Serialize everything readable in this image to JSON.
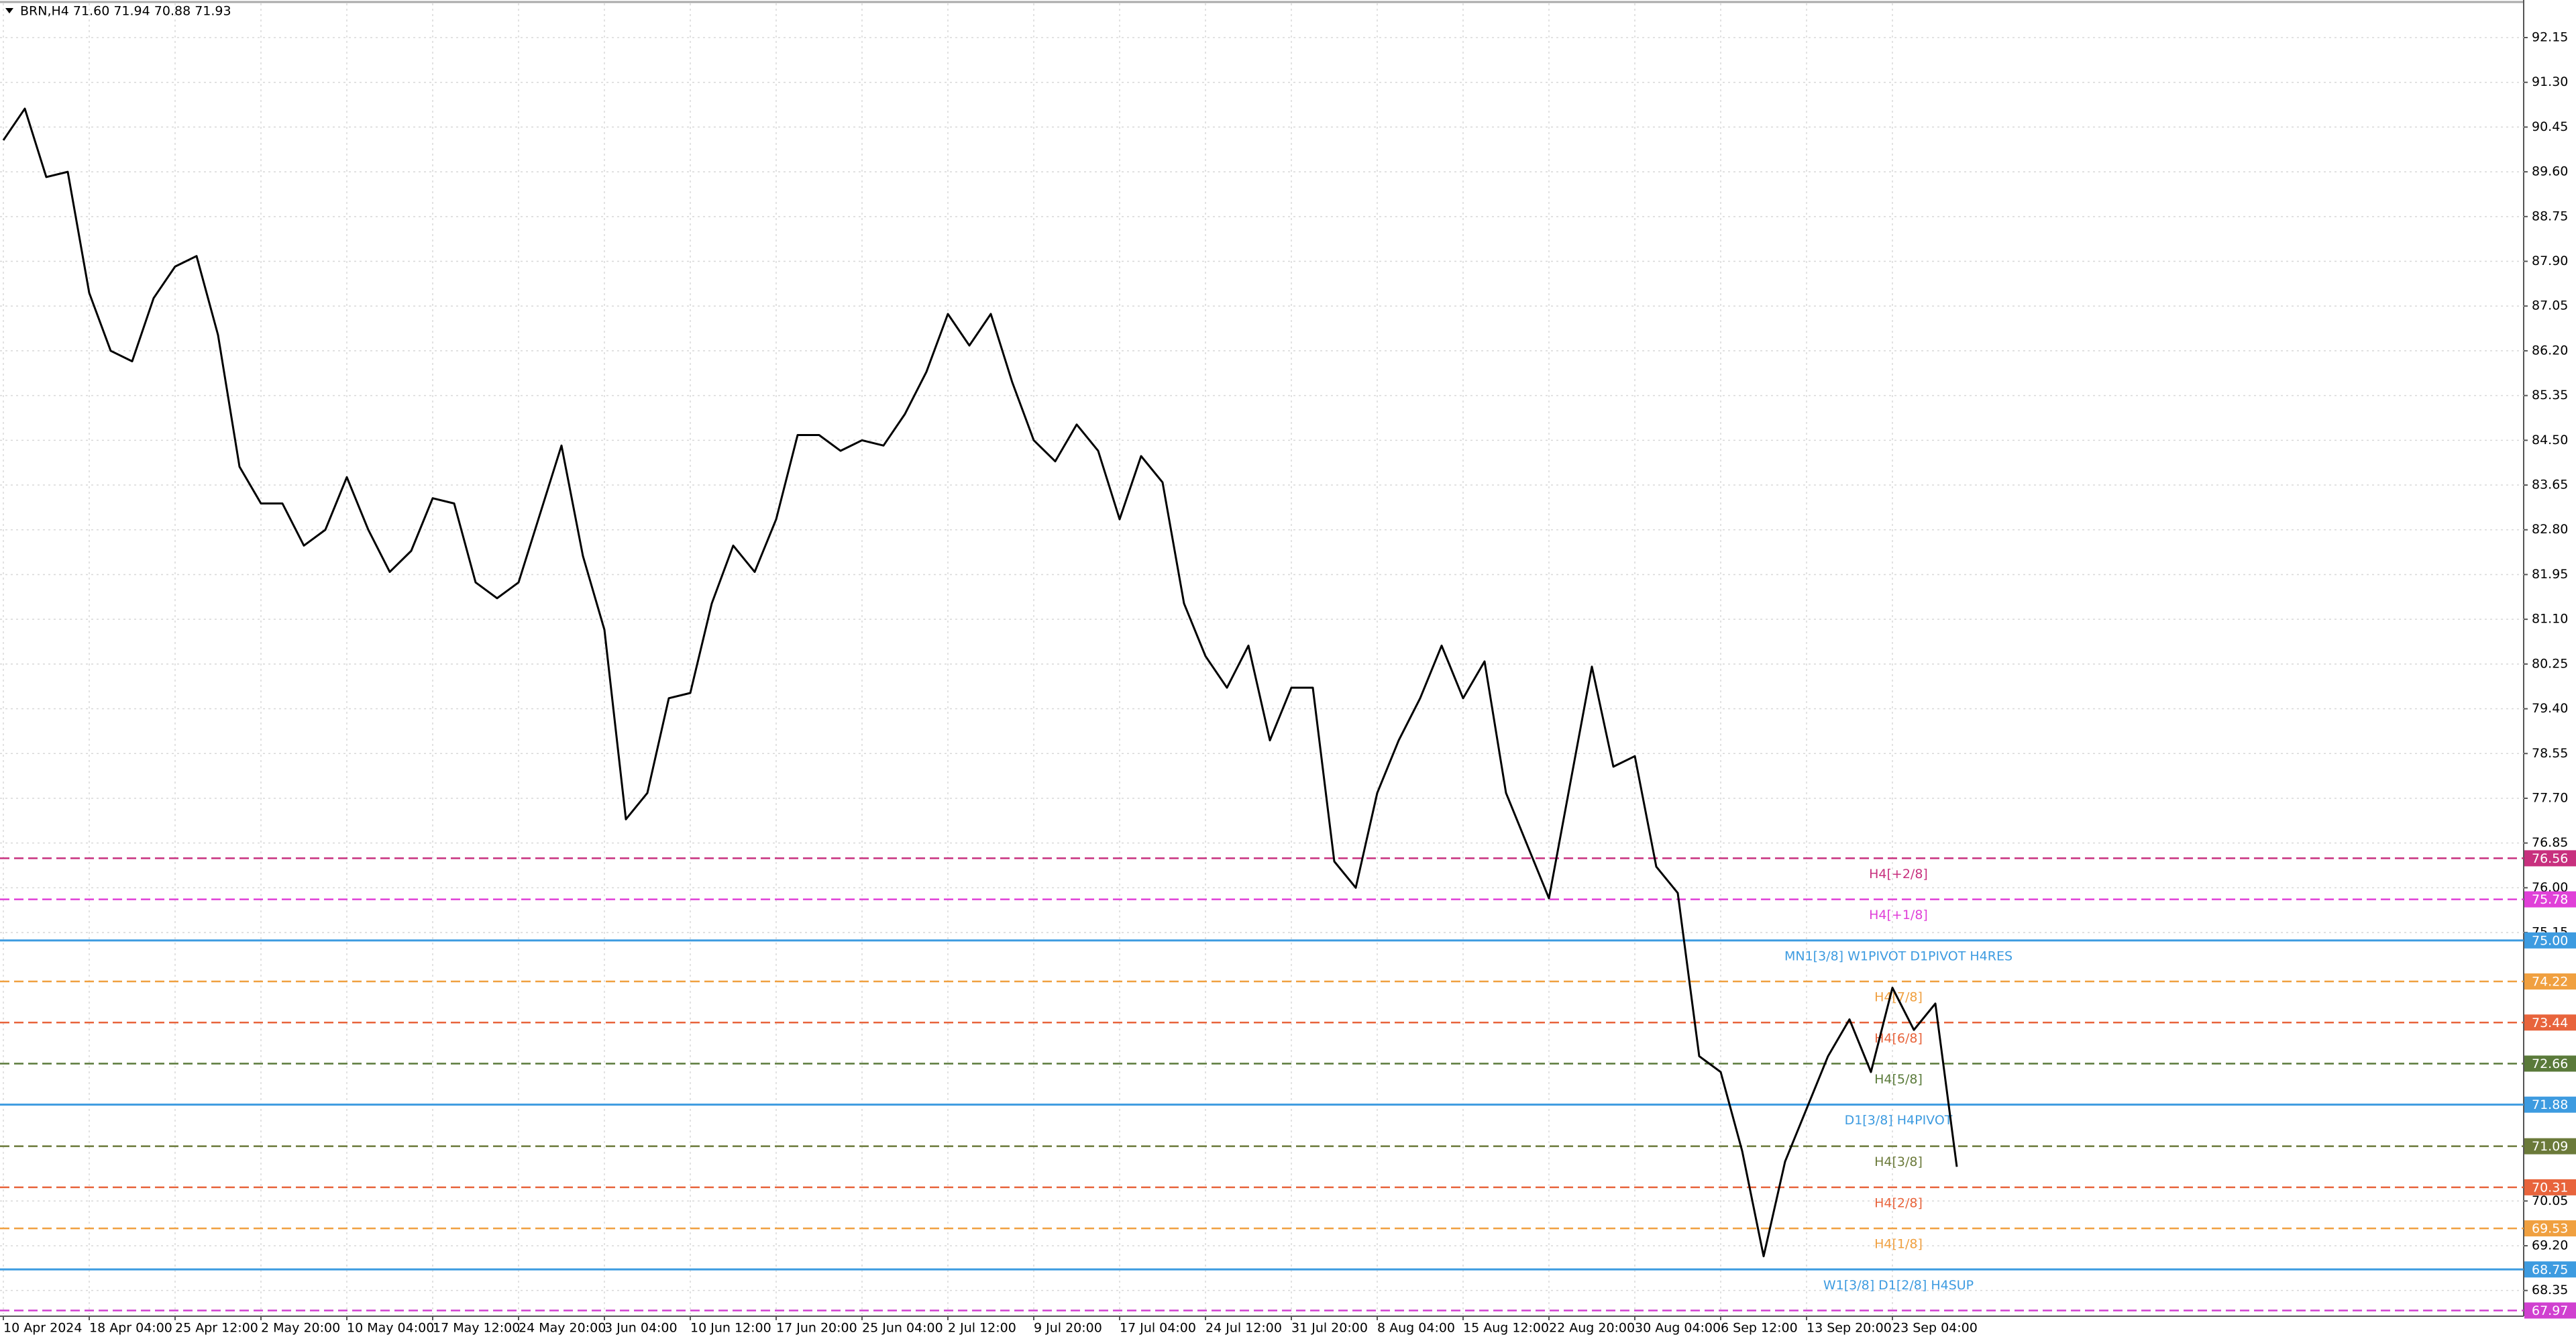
{
  "chart_data": {
    "type": "line",
    "title": "BRN,H4  71.60 71.94 70.88 71.93",
    "categories": [
      "10 Apr 2024",
      null,
      null,
      null,
      "18 Apr 04:00",
      null,
      null,
      null,
      "25 Apr 12:00",
      null,
      null,
      null,
      "2 May 20:00",
      null,
      null,
      null,
      "10 May 04:00",
      null,
      null,
      null,
      "17 May 12:00",
      null,
      null,
      null,
      "24 May 20:00",
      null,
      null,
      null,
      "3 Jun 04:00",
      null,
      null,
      null,
      "10 Jun 12:00",
      null,
      null,
      null,
      "17 Jun 20:00",
      null,
      null,
      null,
      "25 Jun 04:00",
      null,
      null,
      null,
      "2 Jul 12:00",
      null,
      null,
      null,
      "9 Jul 20:00",
      null,
      null,
      null,
      "17 Jul 04:00",
      null,
      null,
      null,
      "24 Jul 12:00",
      null,
      null,
      null,
      "31 Jul 20:00",
      null,
      null,
      null,
      "8 Aug 04:00",
      null,
      null,
      null,
      "15 Aug 12:00",
      null,
      null,
      null,
      "22 Aug 20:00",
      null,
      null,
      null,
      "30 Aug 04:00",
      null,
      null,
      null,
      "6 Sep 12:00",
      null,
      null,
      null,
      "13 Sep 20:00",
      null,
      null,
      null,
      "23 Sep 04:00",
      null,
      null,
      null
    ],
    "series": [
      {
        "color": "#000000",
        "values": [
          90.2,
          90.8,
          89.5,
          89.6,
          87.3,
          86.2,
          86.0,
          87.2,
          87.8,
          88.0,
          86.5,
          84.0,
          83.3,
          83.3,
          82.5,
          82.8,
          83.8,
          82.8,
          82.0,
          82.4,
          83.4,
          83.3,
          81.8,
          81.5,
          81.8,
          83.1,
          84.4,
          82.3,
          80.9,
          77.3,
          77.8,
          79.6,
          79.7,
          81.4,
          82.5,
          82.0,
          83.0,
          84.6,
          84.6,
          84.3,
          84.5,
          84.4,
          85.0,
          85.8,
          86.9,
          86.3,
          86.9,
          85.6,
          84.5,
          84.1,
          84.8,
          84.3,
          83.0,
          84.2,
          83.7,
          81.4,
          80.4,
          79.8,
          80.6,
          78.8,
          79.8,
          79.8,
          76.5,
          76.0,
          77.8,
          78.8,
          79.6,
          80.6,
          79.6,
          80.3,
          77.8,
          76.8,
          75.8,
          78.0,
          80.2,
          78.3,
          78.5,
          76.4,
          75.9,
          72.8,
          72.5,
          71.0,
          69.0,
          70.8,
          71.8,
          72.8,
          73.5,
          72.5,
          74.1,
          73.3,
          73.8,
          70.7
        ]
      }
    ],
    "ylim": [
      67.9,
      92.8
    ],
    "yticks": [
      {
        "value": 92.15,
        "label": "92.15"
      },
      {
        "value": 91.3,
        "label": "91.30"
      },
      {
        "value": 90.45,
        "label": "90.45"
      },
      {
        "value": 89.6,
        "label": "89.60"
      },
      {
        "value": 88.75,
        "label": "88.75"
      },
      {
        "value": 87.9,
        "label": "87.90"
      },
      {
        "value": 87.05,
        "label": "87.05"
      },
      {
        "value": 86.2,
        "label": "86.20"
      },
      {
        "value": 85.35,
        "label": "85.35"
      },
      {
        "value": 84.5,
        "label": "84.50"
      },
      {
        "value": 83.65,
        "label": "83.65"
      },
      {
        "value": 82.8,
        "label": "82.80"
      },
      {
        "value": 81.95,
        "label": "81.95"
      },
      {
        "value": 81.1,
        "label": "81.10"
      },
      {
        "value": 80.25,
        "label": "80.25"
      },
      {
        "value": 79.4,
        "label": "79.40"
      },
      {
        "value": 78.55,
        "label": "78.55"
      },
      {
        "value": 77.7,
        "label": "77.70"
      },
      {
        "value": 76.85,
        "label": "76.85"
      },
      {
        "value": 76.0,
        "label": "76.00"
      },
      {
        "value": 75.15,
        "label": "75.15"
      },
      {
        "value": 70.05,
        "label": "70.05"
      },
      {
        "value": 69.2,
        "label": "69.20"
      },
      {
        "value": 68.35,
        "label": "68.35"
      }
    ],
    "grid": true,
    "levels": [
      {
        "value": 76.56,
        "value_label": "76.56",
        "label": "H4[+2/8]",
        "color": "#c8307e",
        "dashed": true
      },
      {
        "value": 75.78,
        "value_label": "75.78",
        "label": "H4[+1/8]",
        "color": "#e040d8",
        "dashed": true
      },
      {
        "value": 75.0,
        "value_label": "75.00",
        "label": "MN1[3/8] W1PIVOT D1PIVOT H4RES",
        "color": "#3d9be0",
        "dashed": false
      },
      {
        "value": 74.22,
        "value_label": "74.22",
        "label": "H4[7/8]",
        "color": "#f0a040",
        "dashed": true
      },
      {
        "value": 73.44,
        "value_label": "73.44",
        "label": "H4[6/8]",
        "color": "#e8643c",
        "dashed": true
      },
      {
        "value": 72.66,
        "value_label": "72.66",
        "label": "H4[5/8]",
        "color": "#5a7a3a",
        "dashed": true
      },
      {
        "value": 71.88,
        "value_label": "71.88",
        "label": "D1[3/8] H4PIVOT",
        "color": "#3d9be0",
        "dashed": false
      },
      {
        "value": 71.09,
        "value_label": "71.09",
        "label": "H4[3/8]",
        "color": "#6b7a3a",
        "dashed": true
      },
      {
        "value": 70.31,
        "value_label": "70.31",
        "label": "H4[2/8]",
        "color": "#e8643c",
        "dashed": true
      },
      {
        "value": 69.53,
        "value_label": "69.53",
        "label": "H4[1/8]",
        "color": "#f0a040",
        "dashed": true
      },
      {
        "value": 68.75,
        "value_label": "68.75",
        "label": "W1[3/8] D1[2/8] H4SUP",
        "color": "#3d9be0",
        "dashed": false
      },
      {
        "value": 67.97,
        "value_label": "67.97",
        "color": "#d040d0",
        "dashed": true
      }
    ]
  }
}
